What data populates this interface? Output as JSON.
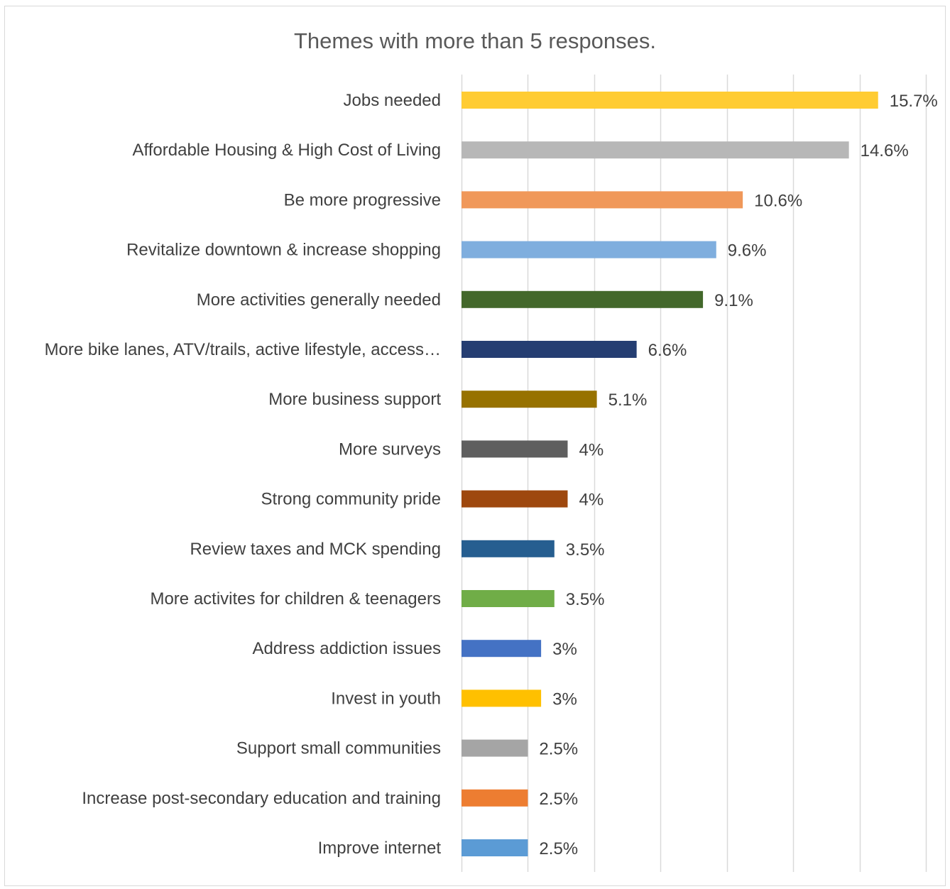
{
  "chart_data": {
    "type": "bar",
    "orientation": "horizontal",
    "title": "Themes with more than 5 responses.",
    "xlim": [
      0,
      17.5
    ],
    "grid": true,
    "categories": [
      "Jobs needed",
      "Affordable Housing & High Cost of Living",
      "Be more progressive",
      "Revitalize downtown & increase shopping",
      "More activities generally needed",
      "More bike lanes, ATV/trails, active lifestyle, access…",
      "More business support",
      "More surveys",
      "Strong community pride",
      "Review taxes and MCK spending",
      "More activites for children & teenagers",
      "Address addiction issues",
      "Invest in youth",
      "Support small communities",
      "Increase post-secondary education and training",
      "Improve internet"
    ],
    "values": [
      15.7,
      14.6,
      10.6,
      9.6,
      9.1,
      6.6,
      5.1,
      4,
      4,
      3.5,
      3.5,
      3,
      3,
      2.5,
      2.5,
      2.5
    ],
    "value_labels": [
      "15.7%",
      "14.6%",
      "10.6%",
      "9.6%",
      "9.1%",
      "6.6%",
      "5.1%",
      "4%",
      "4%",
      "3.5%",
      "3.5%",
      "3%",
      "3%",
      "2.5%",
      "2.5%",
      "2.5%"
    ],
    "colors": [
      "#FFCC33",
      "#B7B7B7",
      "#F0985A",
      "#7FAEDE",
      "#43682B",
      "#253E72",
      "#977200",
      "#5F5F5F",
      "#9E480E",
      "#265E90",
      "#70AD47",
      "#4472C4",
      "#FFC000",
      "#A5A5A5",
      "#ED7D31",
      "#5B9BD5"
    ]
  }
}
